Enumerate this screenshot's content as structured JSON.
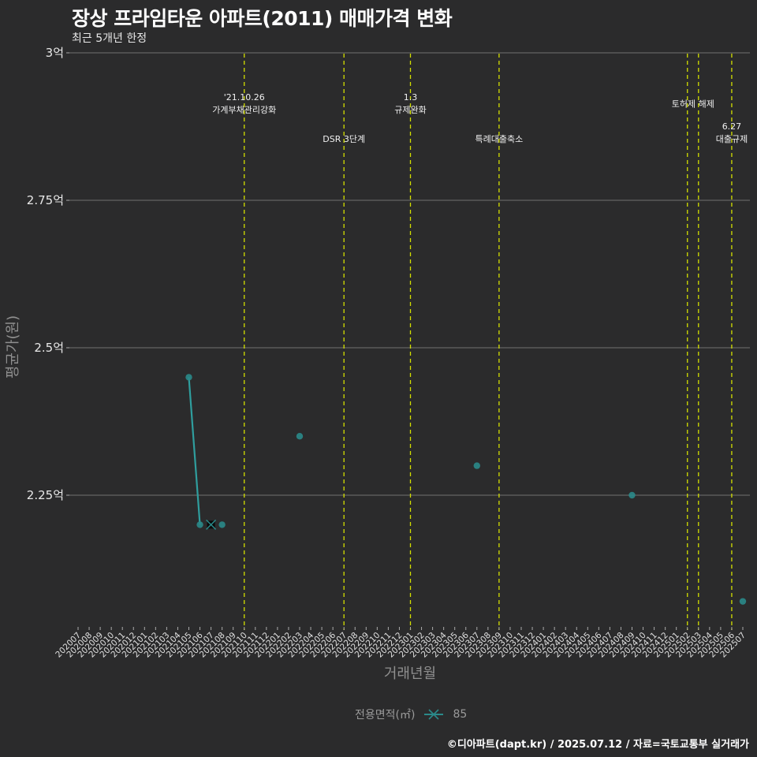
{
  "header": {
    "title": "장상 프라임타운 아파트(2011) 매매가격 변화",
    "subtitle": "최근 5개년 한정"
  },
  "legend": {
    "title": "전용면적(㎡)",
    "items": [
      {
        "label": "85",
        "color": "#2a8a8a",
        "shape": "x-cross"
      }
    ]
  },
  "caption": "©디아파트(dapt.kr) / 2025.07.12 / 자료=국토교통부 실거래가",
  "colors": {
    "background": "#2b2b2c",
    "gridline": "#5a5a5a",
    "series": "#2a8a8a",
    "event_line": "#d4e000"
  },
  "chart_data": {
    "type": "line",
    "title": "장상 프라임타운 아파트(2011) 매매가격 변화",
    "subtitle": "최근 5개년 한정",
    "xlabel": "거래년월",
    "ylabel": "평균가(원)",
    "ylim": [
      2.03,
      3.0
    ],
    "y_ticks": [
      "2.25억",
      "2.5억",
      "2.75억",
      "3억"
    ],
    "y_tick_values": [
      2.25,
      2.5,
      2.75,
      3.0
    ],
    "x_ticks": [
      "202007",
      "202008",
      "202009",
      "202010",
      "202011",
      "202012",
      "202101",
      "202102",
      "202103",
      "202104",
      "202105",
      "202106",
      "202107",
      "202108",
      "202109",
      "202110",
      "202111",
      "202112",
      "202201",
      "202202",
      "202203",
      "202204",
      "202205",
      "202206",
      "202207",
      "202208",
      "202209",
      "202210",
      "202211",
      "202212",
      "202301",
      "202302",
      "202303",
      "202304",
      "202305",
      "202306",
      "202307",
      "202308",
      "202309",
      "202310",
      "202311",
      "202312",
      "202401",
      "202402",
      "202403",
      "202404",
      "202405",
      "202406",
      "202407",
      "202408",
      "202409",
      "202410",
      "202411",
      "202412",
      "202501",
      "202502",
      "202503",
      "202504",
      "202505",
      "202506",
      "202507"
    ],
    "grid": true,
    "legend_position": "bottom",
    "series": [
      {
        "name": "85",
        "unit": "억",
        "points": [
          {
            "x": "202105",
            "y": 2.45
          },
          {
            "x": "202106",
            "y": 2.2
          },
          {
            "x": "202107",
            "y": 2.2,
            "highlight": true
          },
          {
            "x": "202108",
            "y": 2.2
          },
          {
            "x": "202203",
            "y": 2.35
          },
          {
            "x": "202307",
            "y": 2.3
          },
          {
            "x": "202409",
            "y": 2.25
          },
          {
            "x": "202507",
            "y": 2.07
          }
        ],
        "line_segments": [
          [
            "202105",
            "202106"
          ]
        ]
      }
    ],
    "events": [
      {
        "x": "202110",
        "label_lines": [
          "'21.10.26",
          "가계부채관리강화"
        ],
        "label_y": 2.92
      },
      {
        "x": "202207",
        "label_lines": [
          "DSR 3단계"
        ],
        "label_y": 2.87
      },
      {
        "x": "202301",
        "label_lines": [
          "1.3",
          "규제완화"
        ],
        "label_y": 2.92
      },
      {
        "x": "202309",
        "label_lines": [
          "특례대출축소"
        ],
        "label_y": 2.87
      },
      {
        "x": "202502",
        "label_lines": [
          "토허제 해제"
        ],
        "label_y": 2.93,
        "label_anchor": "202502.5"
      },
      {
        "x": "202503",
        "label_lines": [],
        "label_y": null
      },
      {
        "x": "202506",
        "label_lines": [
          "6.27",
          "대출규제"
        ],
        "label_y": 2.87
      }
    ]
  }
}
